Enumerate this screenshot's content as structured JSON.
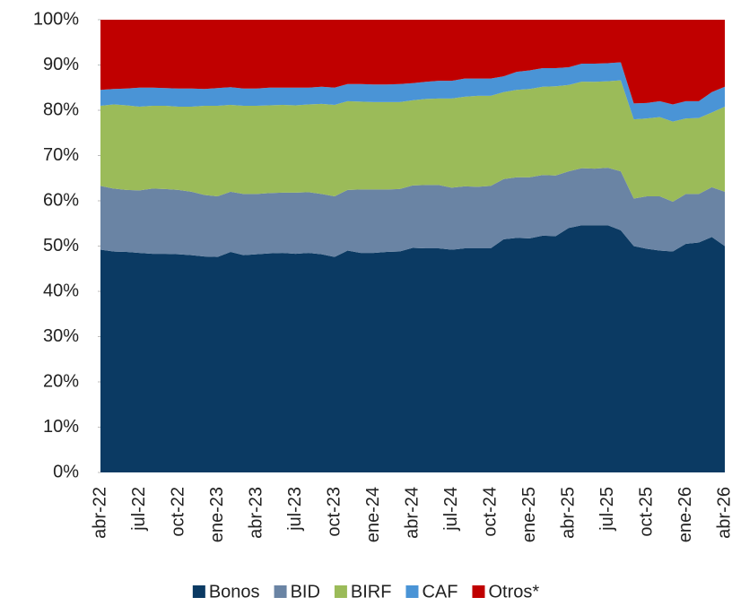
{
  "chart_data": {
    "type": "stacked_area",
    "categories": [
      "abr-22",
      null,
      null,
      "jul-22",
      null,
      null,
      "oct-22",
      null,
      null,
      "ene-23",
      null,
      null,
      "abr-23",
      null,
      null,
      "jul-23",
      null,
      null,
      "oct-23",
      null,
      null,
      "ene-24",
      null,
      null,
      "abr-24",
      null,
      null,
      "jul-24",
      null,
      null,
      "oct-24",
      null,
      null,
      "ene-25",
      null,
      null,
      "abr-25",
      null,
      null,
      "jul-25",
      null,
      null,
      "oct-25",
      null,
      null,
      "ene-26",
      null,
      null,
      "abr-26"
    ],
    "series": [
      {
        "name": "Bonos",
        "color": "#0b3a63",
        "values": [
          49.2,
          48.8,
          48.7,
          48.5,
          48.3,
          48.3,
          48.2,
          48.0,
          47.7,
          47.6,
          48.7,
          48.0,
          48.2,
          48.4,
          48.5,
          48.3,
          48.5,
          48.2,
          47.6,
          49.0,
          48.5,
          48.5,
          48.7,
          48.8,
          49.6,
          49.5,
          49.5,
          49.2,
          49.5,
          49.5,
          49.5,
          51.5,
          51.8,
          51.7,
          52.3,
          52.2,
          54.0,
          54.6,
          54.6,
          54.6,
          53.5,
          50.0,
          49.4,
          49.0,
          48.8,
          50.5,
          50.8,
          52.0,
          50.0
        ]
      },
      {
        "name": "BID",
        "color": "#6a84a4",
        "values": [
          14.1,
          13.9,
          13.7,
          13.8,
          14.4,
          14.3,
          14.2,
          14.0,
          13.6,
          13.4,
          13.3,
          13.5,
          13.3,
          13.3,
          13.3,
          13.5,
          13.4,
          13.3,
          13.4,
          13.4,
          14.0,
          14.0,
          13.8,
          13.8,
          13.8,
          14.0,
          14.0,
          13.7,
          13.7,
          13.6,
          13.8,
          13.3,
          13.4,
          13.5,
          13.4,
          13.4,
          12.5,
          12.6,
          12.5,
          12.7,
          13.0,
          10.5,
          11.6,
          12.0,
          11.0,
          11.0,
          10.7,
          11.0,
          12.0
        ]
      },
      {
        "name": "BIRF",
        "color": "#9bbb59",
        "values": [
          17.7,
          18.6,
          18.7,
          18.5,
          18.3,
          18.4,
          18.4,
          18.8,
          19.7,
          20.0,
          19.2,
          19.5,
          19.5,
          19.4,
          19.4,
          19.3,
          19.4,
          19.9,
          20.2,
          19.6,
          19.4,
          19.3,
          19.3,
          19.2,
          18.8,
          19.0,
          19.1,
          19.7,
          19.8,
          20.1,
          19.9,
          19.2,
          19.3,
          19.5,
          19.5,
          19.7,
          19.1,
          19.1,
          19.2,
          19.1,
          20.1,
          17.5,
          17.2,
          17.5,
          17.7,
          16.7,
          16.8,
          16.5,
          18.8
        ]
      },
      {
        "name": "CAF",
        "color": "#4a94d6",
        "values": [
          3.5,
          3.4,
          3.7,
          4.2,
          4.0,
          3.9,
          4.0,
          4.0,
          3.7,
          3.9,
          3.9,
          3.8,
          3.8,
          3.9,
          3.8,
          3.9,
          3.7,
          3.8,
          3.8,
          3.8,
          3.9,
          3.9,
          3.9,
          4.0,
          3.8,
          3.8,
          3.9,
          3.9,
          4.0,
          3.8,
          3.8,
          3.5,
          4.0,
          4.1,
          4.1,
          4.0,
          3.9,
          4.0,
          4.0,
          4.0,
          4.0,
          3.5,
          3.4,
          3.5,
          3.8,
          3.8,
          3.7,
          4.5,
          4.4
        ]
      },
      {
        "name": "Otros*",
        "color": "#c00000",
        "values": [
          15.5,
          15.3,
          15.2,
          15.0,
          15.0,
          15.1,
          15.2,
          15.2,
          15.3,
          15.1,
          14.9,
          15.2,
          15.2,
          15.0,
          15.0,
          15.0,
          15.0,
          14.8,
          15.0,
          14.2,
          14.2,
          14.3,
          14.3,
          14.2,
          14.0,
          13.7,
          13.5,
          13.5,
          13.0,
          13.0,
          13.0,
          12.5,
          11.5,
          11.2,
          10.7,
          10.7,
          10.5,
          9.7,
          9.7,
          9.6,
          9.4,
          18.5,
          18.4,
          18.0,
          18.7,
          18.0,
          18.0,
          16.0,
          14.8
        ]
      }
    ],
    "ylim": [
      0,
      100
    ],
    "yticks": [
      {
        "value": 0,
        "label": "0%"
      },
      {
        "value": 10,
        "label": "10%"
      },
      {
        "value": 20,
        "label": "20%"
      },
      {
        "value": 30,
        "label": "30%"
      },
      {
        "value": 40,
        "label": "40%"
      },
      {
        "value": 50,
        "label": "50%"
      },
      {
        "value": 60,
        "label": "60%"
      },
      {
        "value": 70,
        "label": "70%"
      },
      {
        "value": 80,
        "label": "80%"
      },
      {
        "value": 90,
        "label": "90%"
      },
      {
        "value": 100,
        "label": "100%"
      }
    ],
    "legend": "bottom"
  }
}
